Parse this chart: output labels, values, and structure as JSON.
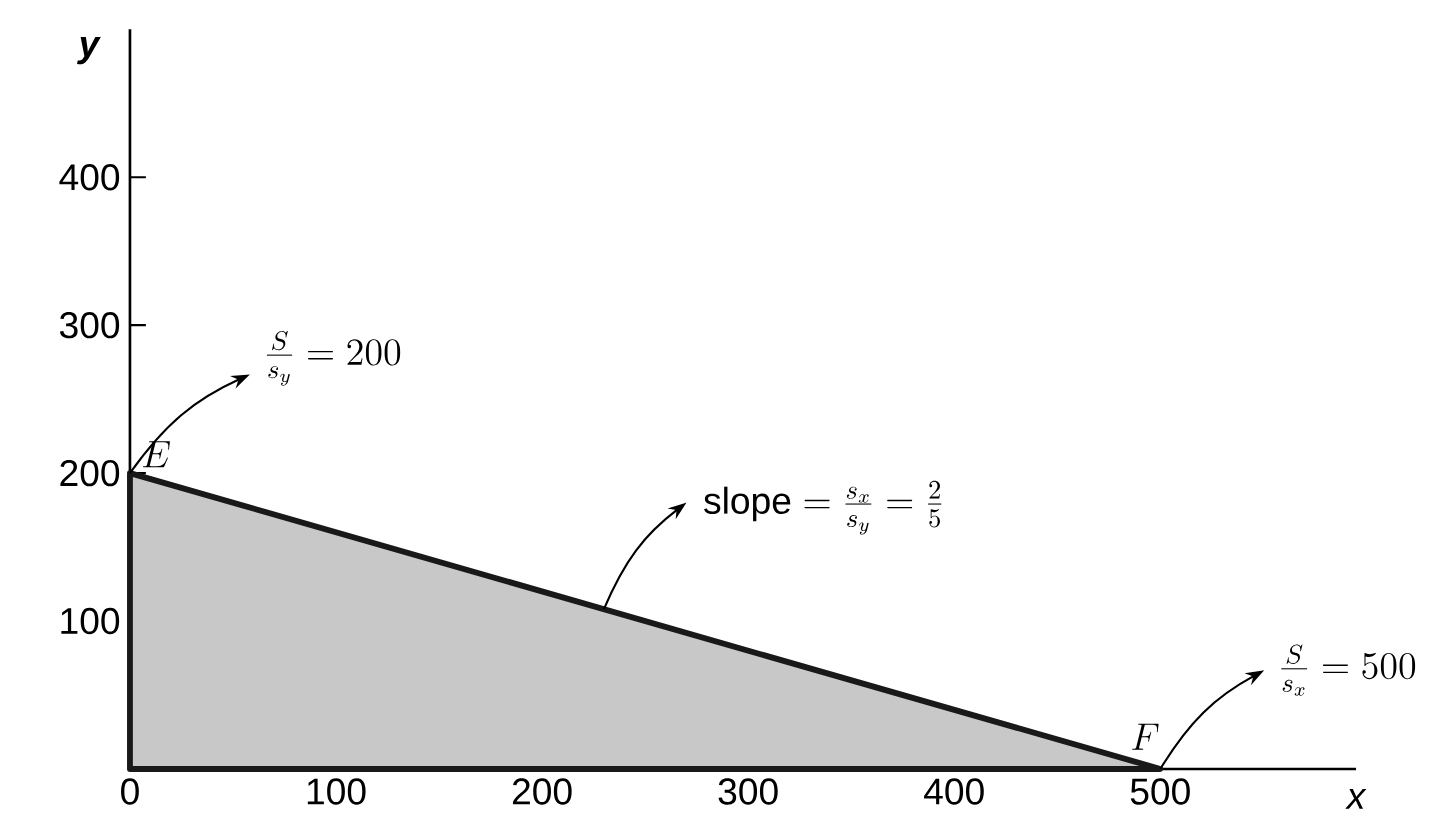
{
  "chart_data": {
    "type": "area",
    "xlabel": "x",
    "ylabel": "y",
    "x": [
      0,
      500
    ],
    "series": [
      {
        "color": "#c8c8c8",
        "values": [
          200,
          0
        ]
      }
    ],
    "xlim": [
      0,
      595
    ],
    "ylim": [
      0,
      500
    ],
    "xticks": [
      0,
      100,
      200,
      300,
      400,
      500
    ],
    "yticks": [
      100,
      200,
      300,
      400
    ],
    "annotations": [
      "E",
      "F",
      "\\frac{S}{s_y}=200",
      "\\mathrm{slope}=\\frac{s_x}{s_y}=\\frac{2}{5}",
      "\\frac{S}{s_x}=500"
    ]
  }
}
